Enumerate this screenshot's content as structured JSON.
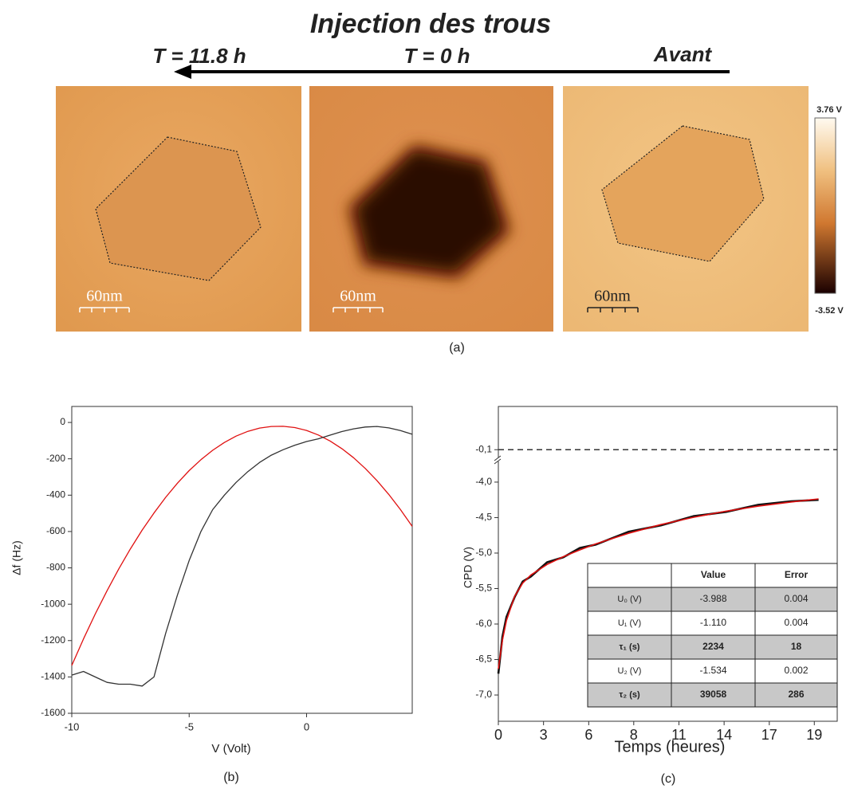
{
  "panel_a": {
    "title": "Injection des trous",
    "time_labels": [
      "T = 11.8 h",
      "T = 0 h",
      "Avant"
    ],
    "scale_bars": [
      "60nm",
      "60nm",
      "60nm"
    ],
    "colorbar": {
      "max_label": "3.76 V",
      "min_label": "-3.52 V"
    },
    "caption": "(a)"
  },
  "chart_data": [
    {
      "type": "line",
      "x_label": "V (Volt)",
      "y_label": "Δf (Hz)",
      "caption": "(b)",
      "x": [
        -10,
        -9.5,
        -9,
        -8.5,
        -8,
        -7.5,
        -7,
        -6.5,
        -6,
        -5.5,
        -5,
        -4.5,
        -4,
        -3.5,
        -3,
        -2.5,
        -2,
        -1.5,
        -1,
        -0.5,
        0,
        0.5,
        1,
        1.5,
        2,
        2.5,
        3,
        3.5,
        4,
        4.5
      ],
      "series": [
        {
          "color": "#e01010",
          "values": [
            -1337,
            -1191,
            -1054,
            -926,
            -806,
            -695,
            -592,
            -498,
            -412,
            -334,
            -265,
            -205,
            -153,
            -110,
            -75,
            -49,
            -31,
            -22,
            -21,
            -28,
            -44,
            -69,
            -102,
            -144,
            -194,
            -253,
            -320,
            -396,
            -480,
            -572
          ]
        },
        {
          "color": "#333333",
          "values": [
            -1390,
            -1370,
            -1400,
            -1430,
            -1440,
            -1440,
            -1450,
            -1400,
            -1160,
            -950,
            -760,
            -600,
            -480,
            -400,
            -330,
            -270,
            -220,
            -180,
            -150,
            -125,
            -105,
            -90,
            -70,
            -50,
            -35,
            -25,
            -22,
            -30,
            -45,
            -65
          ]
        }
      ],
      "xlim": [
        -10,
        4.5
      ],
      "ylim": [
        -1600,
        88
      ],
      "xticks": [
        -10,
        -5,
        0
      ],
      "yticks": [
        0,
        -200,
        -400,
        -600,
        -800,
        -1000,
        -1200,
        -1400,
        -1600
      ]
    },
    {
      "type": "line",
      "x_label": "Temps (heures)",
      "y_label": "CPD (V)",
      "caption": "(c)",
      "x": [
        0,
        0.25,
        0.5,
        1,
        1.5,
        2,
        3,
        4,
        5,
        6,
        8,
        10,
        12,
        14,
        16,
        18,
        19.7
      ],
      "series": [
        {
          "color": "#111111",
          "values": [
            -6.7,
            -6.18,
            -5.9,
            -5.62,
            -5.4,
            -5.33,
            -5.13,
            -5.06,
            -4.93,
            -4.88,
            -4.7,
            -4.61,
            -4.48,
            -4.42,
            -4.32,
            -4.27,
            -4.25
          ]
        },
        {
          "color": "#e01010",
          "values": [
            -6.632,
            -6.229,
            -5.949,
            -5.609,
            -5.423,
            -5.308,
            -5.16,
            -5.051,
            -4.956,
            -4.87,
            -4.722,
            -4.598,
            -4.496,
            -4.41,
            -4.339,
            -4.28,
            -4.237
          ]
        }
      ],
      "xlim": [
        0,
        20.85
      ],
      "ylim": [
        -7.37,
        -3.72
      ],
      "xticks": [
        {
          "value": 0,
          "label": "0"
        },
        {
          "value": 2.78,
          "label": "3"
        },
        {
          "value": 5.56,
          "label": "6"
        },
        {
          "value": 8.33,
          "label": "8"
        },
        {
          "value": 11.11,
          "label": "11"
        },
        {
          "value": 13.89,
          "label": "14"
        },
        {
          "value": 16.67,
          "label": "17"
        },
        {
          "value": 19.44,
          "label": "19"
        }
      ],
      "yticks": [
        {
          "value": -4.0,
          "label": "-4,0"
        },
        {
          "value": -4.5,
          "label": "-4,5"
        },
        {
          "value": -5.0,
          "label": "-5,0"
        },
        {
          "value": -5.5,
          "label": "-5,5"
        },
        {
          "value": -6.0,
          "label": "-6,0"
        },
        {
          "value": -6.5,
          "label": "-6,5"
        },
        {
          "value": -7.0,
          "label": "-7,0"
        }
      ],
      "upper_ylim": [
        -0.2,
        0.6
      ],
      "upper_yticks": [
        {
          "value": -0.1,
          "label": "-0,1"
        }
      ],
      "reference_line": -0.1
    }
  ],
  "table": {
    "header": [
      "Value",
      "Error"
    ],
    "rows": [
      [
        "U₀ (V)",
        "-3.988",
        "0.004"
      ],
      [
        "U₁ (V)",
        "-1.110",
        "0.004"
      ],
      [
        "τ₁ (s)",
        "2234",
        "18"
      ],
      [
        "U₂ (V)",
        "-1.534",
        "0.002"
      ],
      [
        "τ₂ (s)",
        "39058",
        "286"
      ]
    ],
    "highlight_rows": [
      2,
      4
    ]
  }
}
